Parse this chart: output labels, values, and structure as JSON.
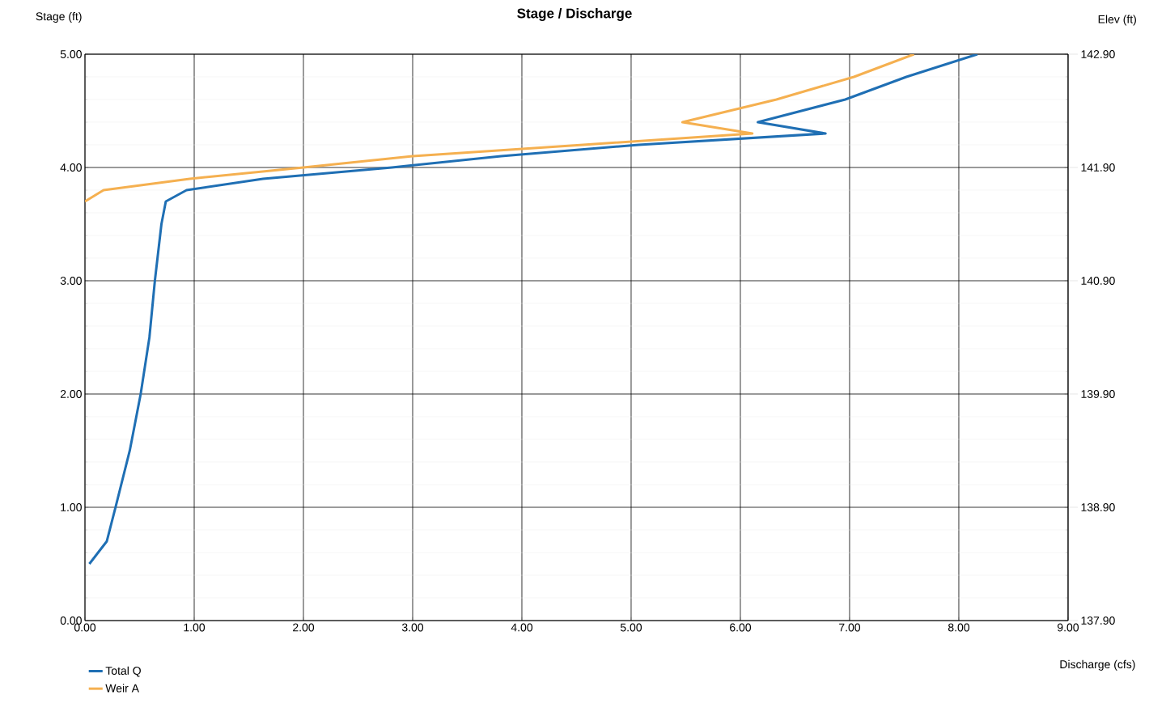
{
  "chart_data": {
    "type": "line",
    "title": "Stage / Discharge",
    "xlabel": "Discharge (cfs)",
    "ylabel": "Stage (ft)",
    "y2label": "Elev (ft)",
    "xlim": [
      0,
      9
    ],
    "xticks": [
      {
        "value": 0,
        "label": "0.00"
      },
      {
        "value": 1,
        "label": "1.00"
      },
      {
        "value": 2,
        "label": "2.00"
      },
      {
        "value": 3,
        "label": "3.00"
      },
      {
        "value": 4,
        "label": "4.00"
      },
      {
        "value": 5,
        "label": "5.00"
      },
      {
        "value": 6,
        "label": "6.00"
      },
      {
        "value": 7,
        "label": "7.00"
      },
      {
        "value": 8,
        "label": "8.00"
      },
      {
        "value": 9,
        "label": "9.00"
      }
    ],
    "ylim": [
      0,
      5
    ],
    "yticks": [
      {
        "value": 0,
        "label": "0.00"
      },
      {
        "value": 1,
        "label": "1.00"
      },
      {
        "value": 2,
        "label": "2.00"
      },
      {
        "value": 3,
        "label": "3.00"
      },
      {
        "value": 4,
        "label": "4.00"
      },
      {
        "value": 5,
        "label": "5.00"
      }
    ],
    "y2lim": [
      137.9,
      142.9
    ],
    "y2ticks": [
      {
        "value": 137.9,
        "label": "137.90"
      },
      {
        "value": 138.9,
        "label": "138.90"
      },
      {
        "value": 139.9,
        "label": "139.90"
      },
      {
        "value": 140.9,
        "label": "140.90"
      },
      {
        "value": 141.9,
        "label": "141.90"
      },
      {
        "value": 142.9,
        "label": "142.90"
      }
    ],
    "grid": true,
    "legend": "bottom left",
    "marker": "none",
    "line_style": "solid",
    "series": [
      {
        "name": "Total Q",
        "color": "#1f6fb4",
        "x": [
          0.04,
          0.2,
          0.28,
          0.41,
          0.51,
          0.59,
          0.64,
          0.7,
          0.74,
          0.93,
          1.63,
          2.81,
          3.81,
          5.07,
          6.78,
          6.16,
          6.96,
          7.52,
          8.17
        ],
        "values": [
          0.5,
          0.7,
          1.0,
          1.5,
          2.0,
          2.5,
          3.0,
          3.5,
          3.7,
          3.8,
          3.9,
          4.0,
          4.1,
          4.2,
          4.3,
          4.4,
          4.6,
          4.8,
          5.0
        ]
      },
      {
        "name": "Weir A",
        "color": "#f5b050",
        "x": [
          0.0,
          0.17,
          0.96,
          2.0,
          3.0,
          4.56,
          6.11,
          5.47,
          6.33,
          7.04,
          7.59
        ],
        "values": [
          3.7,
          3.8,
          3.9,
          4.0,
          4.1,
          4.2,
          4.3,
          4.4,
          4.6,
          4.8,
          5.0
        ]
      }
    ]
  }
}
